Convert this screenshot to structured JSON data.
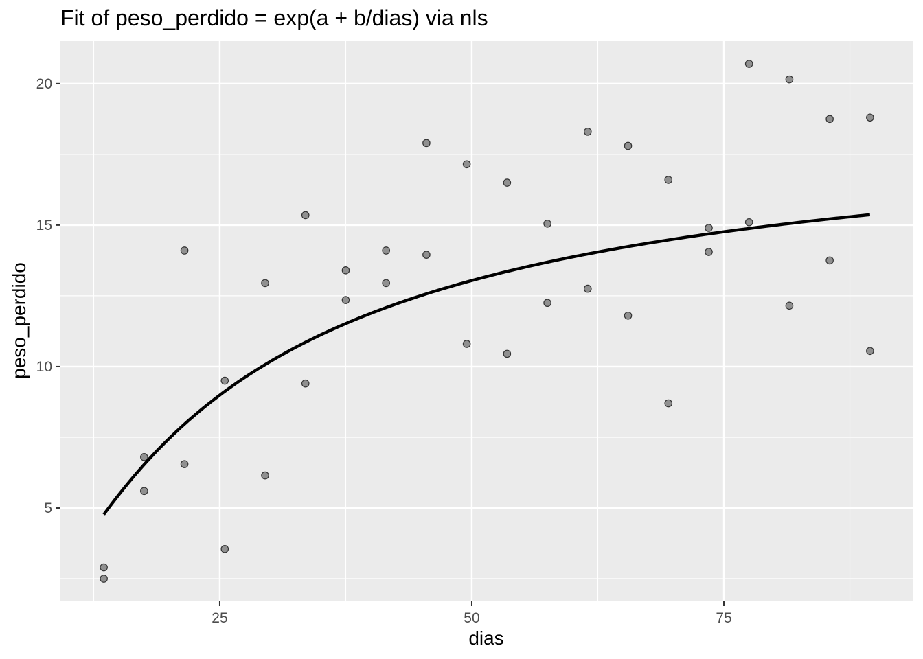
{
  "chart_data": {
    "type": "scatter",
    "title": "Fit of peso_perdido = exp(a + b/dias) via nls",
    "xlabel": "dias",
    "ylabel": "peso_perdido",
    "xlim": [
      9.2,
      93.8
    ],
    "ylim": [
      1.7,
      21.5
    ],
    "x_ticks": [
      {
        "value": 25,
        "label": "25"
      },
      {
        "value": 50,
        "label": "50"
      },
      {
        "value": 75,
        "label": "75"
      }
    ],
    "y_ticks": [
      {
        "value": 5,
        "label": "5"
      },
      {
        "value": 10,
        "label": "10"
      },
      {
        "value": 15,
        "label": "15"
      },
      {
        "value": 20,
        "label": "20"
      }
    ],
    "x_minor": [
      12.5,
      37.5,
      62.5,
      87.5
    ],
    "y_minor": [
      2.5,
      7.5,
      12.5,
      17.5
    ],
    "grid": true,
    "panel_color": "#ebebeb",
    "point_color": "#808080",
    "line_color": "#000000",
    "points": [
      {
        "x": 13.5,
        "y": 2.9
      },
      {
        "x": 13.5,
        "y": 2.5
      },
      {
        "x": 17.5,
        "y": 6.8
      },
      {
        "x": 17.5,
        "y": 5.6
      },
      {
        "x": 21.5,
        "y": 14.1
      },
      {
        "x": 21.5,
        "y": 6.55
      },
      {
        "x": 25.5,
        "y": 9.5
      },
      {
        "x": 25.5,
        "y": 3.55
      },
      {
        "x": 29.5,
        "y": 12.95
      },
      {
        "x": 29.5,
        "y": 6.15
      },
      {
        "x": 33.5,
        "y": 15.35
      },
      {
        "x": 33.5,
        "y": 9.4
      },
      {
        "x": 37.5,
        "y": 13.4
      },
      {
        "x": 37.5,
        "y": 12.35
      },
      {
        "x": 41.5,
        "y": 14.1
      },
      {
        "x": 41.5,
        "y": 12.95
      },
      {
        "x": 45.5,
        "y": 17.9
      },
      {
        "x": 45.5,
        "y": 13.95
      },
      {
        "x": 49.5,
        "y": 17.15
      },
      {
        "x": 49.5,
        "y": 10.8
      },
      {
        "x": 53.5,
        "y": 16.5
      },
      {
        "x": 53.5,
        "y": 10.45
      },
      {
        "x": 57.5,
        "y": 15.05
      },
      {
        "x": 57.5,
        "y": 12.25
      },
      {
        "x": 61.5,
        "y": 18.3
      },
      {
        "x": 61.5,
        "y": 12.75
      },
      {
        "x": 65.5,
        "y": 17.8
      },
      {
        "x": 65.5,
        "y": 11.8
      },
      {
        "x": 69.5,
        "y": 16.6
      },
      {
        "x": 69.5,
        "y": 8.7
      },
      {
        "x": 73.5,
        "y": 14.9
      },
      {
        "x": 73.5,
        "y": 14.05
      },
      {
        "x": 77.5,
        "y": 20.7
      },
      {
        "x": 77.5,
        "y": 15.1
      },
      {
        "x": 81.5,
        "y": 20.15
      },
      {
        "x": 81.5,
        "y": 12.15
      },
      {
        "x": 85.5,
        "y": 18.75
      },
      {
        "x": 85.5,
        "y": 13.75
      },
      {
        "x": 89.5,
        "y": 18.8
      },
      {
        "x": 89.5,
        "y": 10.55
      }
    ],
    "fit": {
      "formula": "exp(a + b/dias)",
      "a": 2.94,
      "b": -18.6,
      "x_start": 13.5,
      "x_end": 89.5
    }
  }
}
